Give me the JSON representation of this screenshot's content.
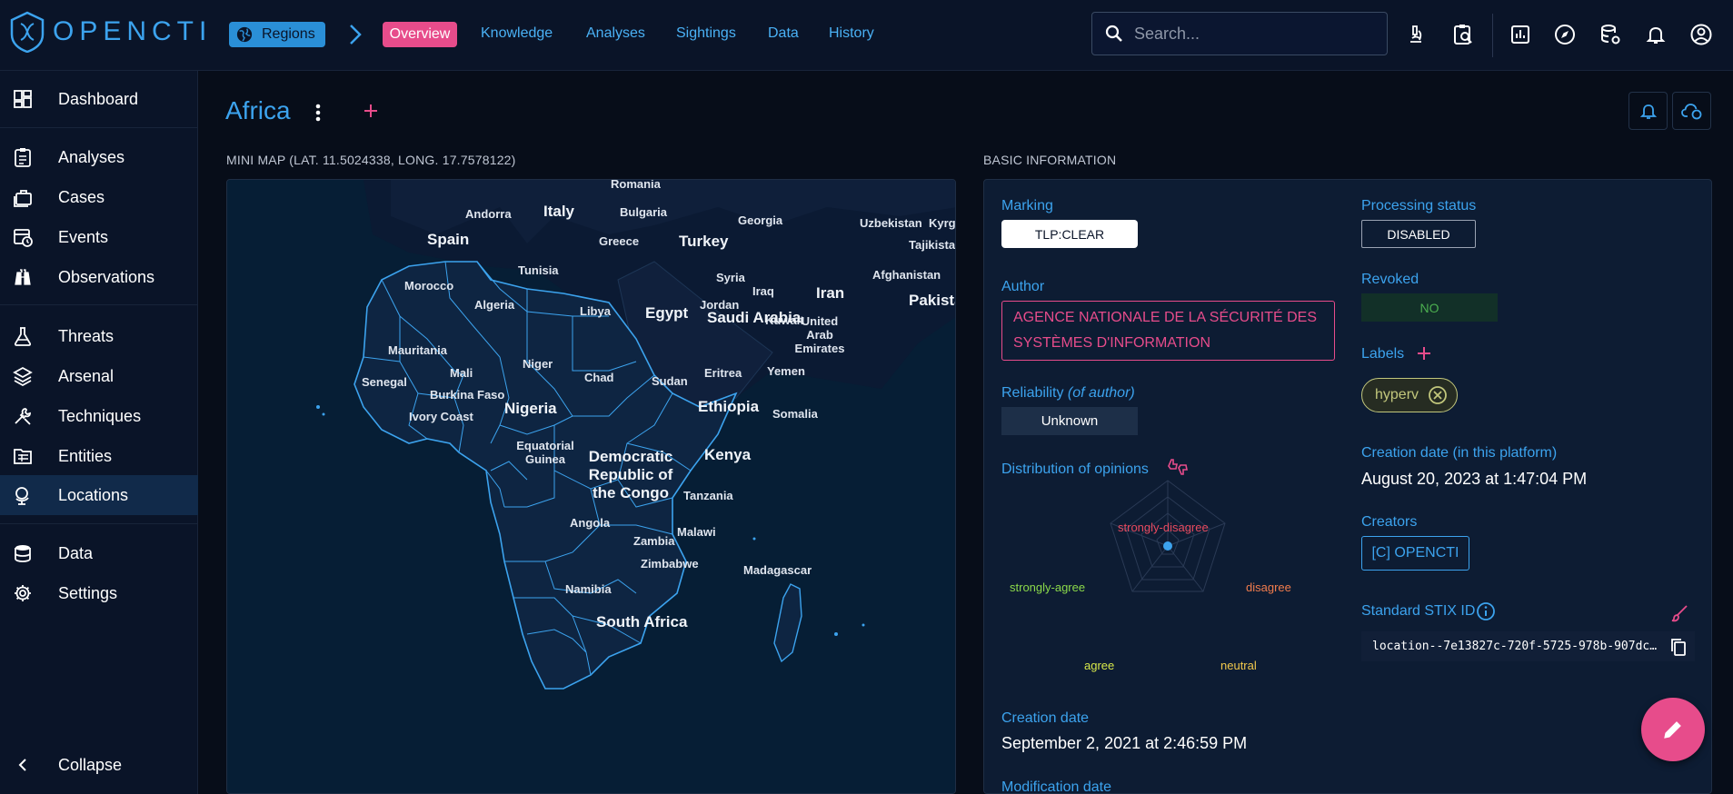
{
  "app": {
    "logo_text": "OPENCTI"
  },
  "breadcrumb": {
    "entity_type": "Regions",
    "current_tab": "Overview"
  },
  "tabs": [
    "Knowledge",
    "Analyses",
    "Sightings",
    "Data",
    "History"
  ],
  "search": {
    "placeholder": "Search..."
  },
  "sidebar": {
    "items": [
      {
        "label": "Dashboard",
        "icon": "dashboard-icon"
      },
      {
        "label": "Analyses",
        "icon": "clipboard-icon"
      },
      {
        "label": "Cases",
        "icon": "briefcase-icon"
      },
      {
        "label": "Events",
        "icon": "calendar-clock-icon"
      },
      {
        "label": "Observations",
        "icon": "binoculars-icon"
      },
      {
        "label": "Threats",
        "icon": "flask-icon"
      },
      {
        "label": "Arsenal",
        "icon": "layers-icon"
      },
      {
        "label": "Techniques",
        "icon": "tools-icon"
      },
      {
        "label": "Entities",
        "icon": "folder-table-icon"
      },
      {
        "label": "Locations",
        "icon": "globe-model-icon",
        "active": true
      },
      {
        "label": "Data",
        "icon": "database-icon"
      },
      {
        "label": "Settings",
        "icon": "gear-icon"
      }
    ],
    "collapse_label": "Collapse"
  },
  "page": {
    "title": "Africa"
  },
  "mini_map": {
    "title": "MINI MAP (LAT. 11.5024338, LONG. 17.7578122)",
    "labels": [
      "Romania",
      "Andorra",
      "Italy",
      "Bulgaria",
      "Georgia",
      "Uzbekistan",
      "Kyrg",
      "Tajikistan",
      "Spain",
      "Greece",
      "Turkey",
      "Syria",
      "Iraq",
      "Iran",
      "Afghanistan",
      "Pakista",
      "Tunisia",
      "Jordan",
      "Kuwait",
      "Morocco",
      "Algeria",
      "Libya",
      "Egypt",
      "Saudi Arabia",
      "United Arab Emirates",
      "Mauritania",
      "Niger",
      "Mali",
      "Chad",
      "Sudan",
      "Eritrea",
      "Yemen",
      "Senegal",
      "Burkina Faso",
      "Nigeria",
      "Ethiopia",
      "Somalia",
      "Ivory Coast",
      "Equatorial Guinea",
      "Democratic Republic of the Congo",
      "Kenya",
      "Tanzania",
      "Angola",
      "Zambia",
      "Malawi",
      "Zimbabwe",
      "Madagascar",
      "Namibia",
      "South Africa"
    ]
  },
  "basic_info": {
    "title": "BASIC INFORMATION",
    "marking_label": "Marking",
    "marking_value": "TLP:CLEAR",
    "processing_status_label": "Processing status",
    "processing_status_value": "DISABLED",
    "author_label": "Author",
    "author_value": "AGENCE NATIONALE DE LA SÉCURITÉ DES SYSTÈMES D'INFORMATION",
    "revoked_label": "Revoked",
    "revoked_value": "NO",
    "labels_label": "Labels",
    "label_chip": "hyperv",
    "reliability_label": "Reliability",
    "reliability_suffix": "(of author)",
    "reliability_value": "Unknown",
    "distribution_label": "Distribution of opinions",
    "radar_axes": [
      "strongly-disagree",
      "disagree",
      "neutral",
      "agree",
      "strongly-agree"
    ],
    "creation_platform_label": "Creation date (in this platform)",
    "creation_platform_value": "August 20, 2023 at 1:47:04 PM",
    "creators_label": "Creators",
    "creator_value": "[C] OPENCTI",
    "stix_label": "Standard STIX ID",
    "stix_value": "location--7e13827c-720f-5725-978b-907dc…",
    "creation_date_label": "Creation date",
    "creation_date_value": "September 2, 2021 at 2:46:59 PM",
    "modification_date_label": "Modification date"
  },
  "colors": {
    "accent": "#3ca3ee",
    "secondary": "#e74c8b",
    "background": "#070d19"
  }
}
